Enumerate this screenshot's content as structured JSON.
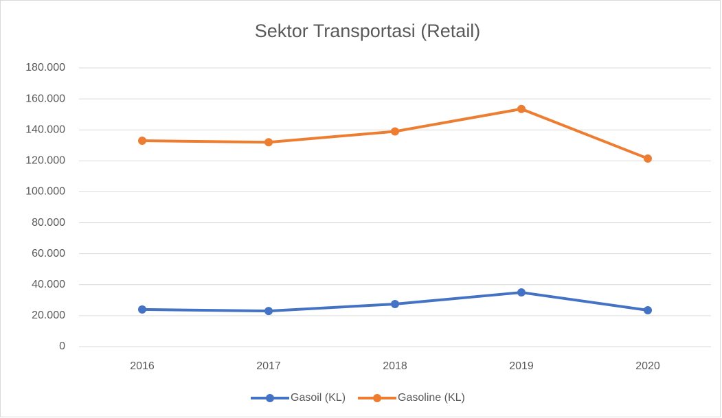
{
  "chart_data": {
    "type": "line",
    "title": "Sektor Transportasi (Retail)",
    "categories": [
      "2016",
      "2017",
      "2018",
      "2019",
      "2020"
    ],
    "series": [
      {
        "name": "Gasoil (KL)",
        "color": "#4472c4",
        "values": [
          24000,
          23000,
          27500,
          35000,
          23500
        ]
      },
      {
        "name": "Gasoline (KL)",
        "color": "#ed7d31",
        "values": [
          133000,
          132000,
          139000,
          153500,
          121500
        ]
      }
    ],
    "ylim": [
      0,
      180000
    ],
    "yticks": [
      0,
      {
        "value": 20000,
        "label": "20.000"
      },
      {
        "value": 40000,
        "label": "40.000"
      },
      {
        "value": 60000,
        "label": "60.000"
      },
      {
        "value": 80000,
        "label": "80.000"
      },
      {
        "value": 100000,
        "label": "100.000"
      },
      {
        "value": 120000,
        "label": "120.000"
      },
      {
        "value": 140000,
        "label": "140.000"
      },
      {
        "value": 160000,
        "label": "160.000"
      },
      {
        "value": 180000,
        "label": "180.000"
      }
    ],
    "grid": true
  }
}
